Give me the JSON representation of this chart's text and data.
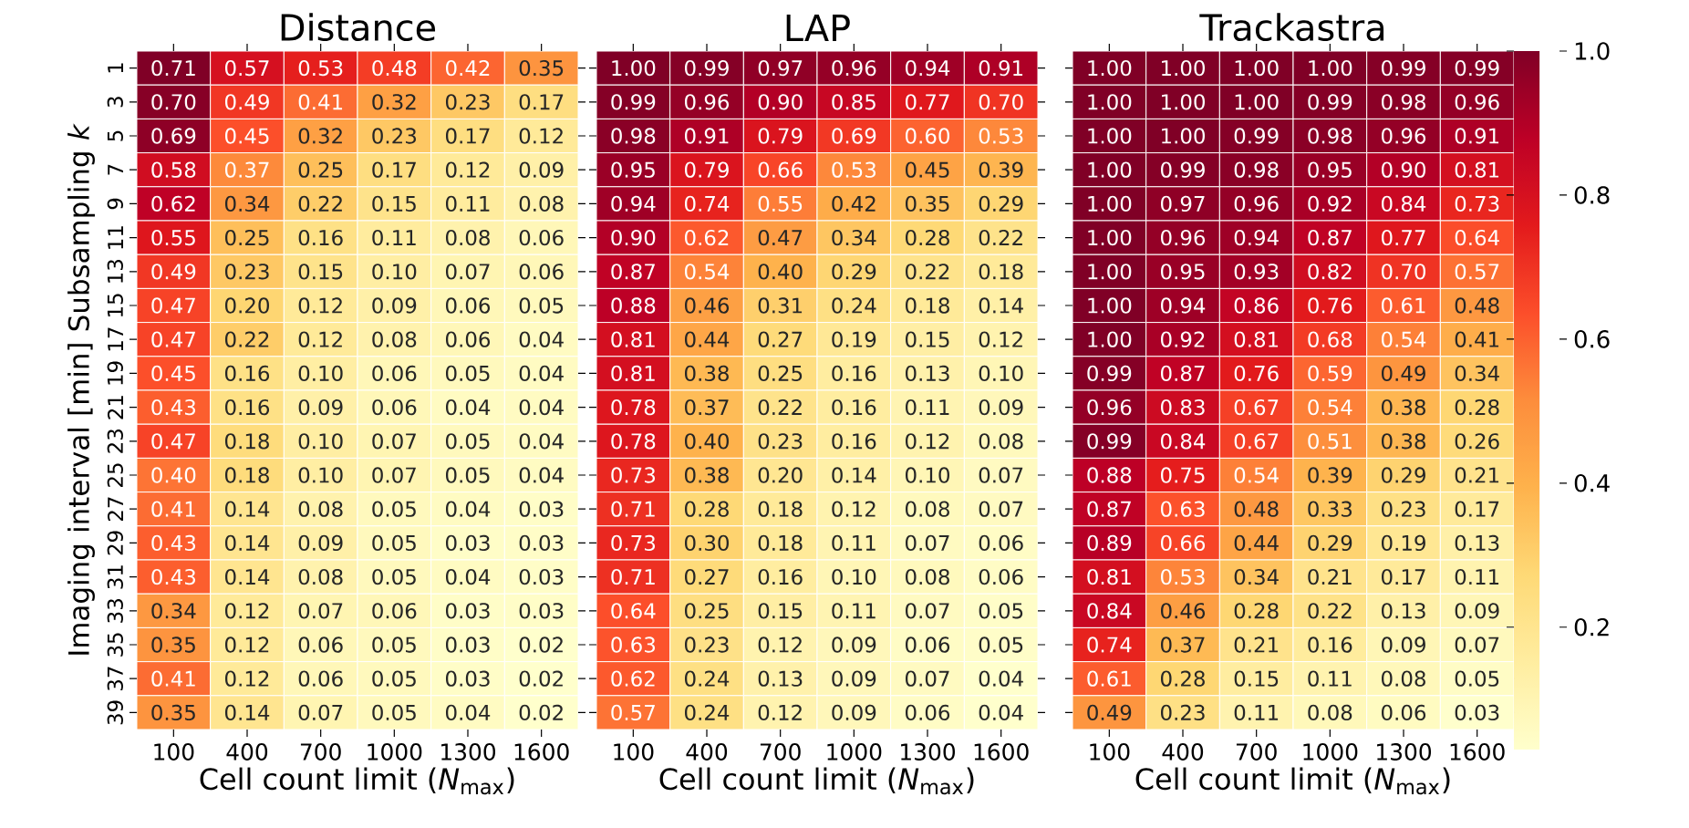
{
  "chart_data": [
    {
      "type": "heatmap",
      "title": "Distance",
      "xlabel": "Cell count limit (*N*$_{max}$)",
      "ylabel": "Imaging interval [min] Subsampling *k*",
      "categories": [
        "100",
        "400",
        "700",
        "1000",
        "1300",
        "1600"
      ],
      "y_categories": [
        "1",
        "3",
        "5",
        "7",
        "9",
        "11",
        "13",
        "15",
        "17",
        "19",
        "21",
        "23",
        "25",
        "27",
        "29",
        "31",
        "33",
        "35",
        "37",
        "39"
      ],
      "cells": [
        [
          0.71,
          0.57,
          0.53,
          0.48,
          0.42,
          0.35
        ],
        [
          0.7,
          0.49,
          0.41,
          0.32,
          0.23,
          0.17
        ],
        [
          0.69,
          0.45,
          0.32,
          0.23,
          0.17,
          0.12
        ],
        [
          0.58,
          0.37,
          0.25,
          0.17,
          0.12,
          0.09
        ],
        [
          0.62,
          0.34,
          0.22,
          0.15,
          0.11,
          0.08
        ],
        [
          0.55,
          0.25,
          0.16,
          0.11,
          0.08,
          0.06
        ],
        [
          0.49,
          0.23,
          0.15,
          0.1,
          0.07,
          0.06
        ],
        [
          0.47,
          0.2,
          0.12,
          0.09,
          0.06,
          0.05
        ],
        [
          0.47,
          0.22,
          0.12,
          0.08,
          0.06,
          0.04
        ],
        [
          0.45,
          0.16,
          0.1,
          0.06,
          0.05,
          0.04
        ],
        [
          0.43,
          0.16,
          0.09,
          0.06,
          0.04,
          0.04
        ],
        [
          0.47,
          0.18,
          0.1,
          0.07,
          0.05,
          0.04
        ],
        [
          0.4,
          0.18,
          0.1,
          0.07,
          0.05,
          0.04
        ],
        [
          0.41,
          0.14,
          0.08,
          0.05,
          0.04,
          0.03
        ],
        [
          0.43,
          0.14,
          0.09,
          0.05,
          0.03,
          0.03
        ],
        [
          0.43,
          0.14,
          0.08,
          0.05,
          0.04,
          0.03
        ],
        [
          0.34,
          0.12,
          0.07,
          0.06,
          0.03,
          0.03
        ],
        [
          0.35,
          0.12,
          0.06,
          0.05,
          0.03,
          0.02
        ],
        [
          0.41,
          0.12,
          0.06,
          0.05,
          0.03,
          0.02
        ],
        [
          0.35,
          0.14,
          0.07,
          0.05,
          0.04,
          0.02
        ]
      ],
      "cell_labels": [
        [
          "0.71",
          "0.57",
          "0.53",
          "0.48",
          "0.42",
          "0.35"
        ],
        [
          "0.70",
          "0.49",
          "0.41",
          "0.32",
          "0.23",
          "0.17"
        ],
        [
          "0.69",
          "0.45",
          "0.32",
          "0.23",
          "0.17",
          "0.12"
        ],
        [
          "0.58",
          "0.37",
          "0.25",
          "0.17",
          "0.12",
          "0.09"
        ],
        [
          "0.62",
          "0.34",
          "0.22",
          "0.15",
          "0.11",
          "0.08"
        ],
        [
          "0.55",
          "0.25",
          "0.16",
          "0.11",
          "0.08",
          "0.06"
        ],
        [
          "0.49",
          "0.23",
          "0.15",
          "0.10",
          "0.07",
          "0.06"
        ],
        [
          "0.47",
          "0.20",
          "0.12",
          "0.09",
          "0.06",
          "0.05"
        ],
        [
          "0.47",
          "0.22",
          "0.12",
          "0.08",
          "0.06",
          "0.04"
        ],
        [
          "0.45",
          "0.16",
          "0.10",
          "0.06",
          "0.05",
          "0.04"
        ],
        [
          "0.43",
          "0.16",
          "0.09",
          "0.06",
          "0.04",
          "0.04"
        ],
        [
          "0.47",
          "0.18",
          "0.10",
          "0.07",
          "0.05",
          "0.04"
        ],
        [
          "0.40",
          "0.18",
          "0.10",
          "0.07",
          "0.05",
          "0.04"
        ],
        [
          "0.41",
          "0.14",
          "0.08",
          "0.05",
          "0.04",
          "0.03"
        ],
        [
          "0.43",
          "0.14",
          "0.09",
          "0.05",
          "0.03",
          "0.03"
        ],
        [
          "0.43",
          "0.14",
          "0.08",
          "0.05",
          "0.04",
          "0.03"
        ],
        [
          "0.34",
          "0.12",
          "0.07",
          "0.06",
          "0.03",
          "0.03"
        ],
        [
          "0.35",
          "0.12",
          "0.06",
          "0.05",
          "0.03",
          "0.02"
        ],
        [
          "0.41",
          "0.12",
          "0.06",
          "0.05",
          "0.03",
          "0.02"
        ],
        [
          "0.35",
          "0.14",
          "0.07",
          "0.05",
          "0.04",
          "0.02"
        ]
      ]
    },
    {
      "type": "heatmap",
      "title": "LAP",
      "xlabel": "Cell count limit (*N*$_{max}$)",
      "tick_labels": "x",
      "categories": [
        "100",
        "400",
        "700",
        "1000",
        "1300",
        "1600"
      ],
      "y_categories": [
        "1",
        "3",
        "5",
        "7",
        "9",
        "11",
        "13",
        "15",
        "17",
        "19",
        "21",
        "23",
        "25",
        "27",
        "29",
        "31",
        "33",
        "35",
        "37",
        "39"
      ],
      "cells": [
        [
          1.0,
          0.99,
          0.97,
          0.96,
          0.94,
          0.91
        ],
        [
          0.99,
          0.96,
          0.9,
          0.85,
          0.77,
          0.7
        ],
        [
          0.98,
          0.91,
          0.79,
          0.69,
          0.6,
          0.53
        ],
        [
          0.95,
          0.79,
          0.66,
          0.53,
          0.45,
          0.39
        ],
        [
          0.94,
          0.74,
          0.55,
          0.42,
          0.35,
          0.29
        ],
        [
          0.9,
          0.62,
          0.47,
          0.34,
          0.28,
          0.22
        ],
        [
          0.87,
          0.54,
          0.4,
          0.29,
          0.22,
          0.18
        ],
        [
          0.88,
          0.46,
          0.31,
          0.24,
          0.18,
          0.14
        ],
        [
          0.81,
          0.44,
          0.27,
          0.19,
          0.15,
          0.12
        ],
        [
          0.81,
          0.38,
          0.25,
          0.16,
          0.13,
          0.1
        ],
        [
          0.78,
          0.37,
          0.22,
          0.16,
          0.11,
          0.09
        ],
        [
          0.78,
          0.4,
          0.23,
          0.16,
          0.12,
          0.08
        ],
        [
          0.73,
          0.38,
          0.2,
          0.14,
          0.1,
          0.07
        ],
        [
          0.71,
          0.28,
          0.18,
          0.12,
          0.08,
          0.07
        ],
        [
          0.73,
          0.3,
          0.18,
          0.11,
          0.07,
          0.06
        ],
        [
          0.71,
          0.27,
          0.16,
          0.1,
          0.08,
          0.06
        ],
        [
          0.64,
          0.25,
          0.15,
          0.11,
          0.07,
          0.05
        ],
        [
          0.63,
          0.23,
          0.12,
          0.09,
          0.06,
          0.05
        ],
        [
          0.62,
          0.24,
          0.13,
          0.09,
          0.07,
          0.04
        ],
        [
          0.57,
          0.24,
          0.12,
          0.09,
          0.06,
          0.04
        ]
      ],
      "cell_labels": [
        [
          "1.00",
          "0.99",
          "0.97",
          "0.96",
          "0.94",
          "0.91"
        ],
        [
          "0.99",
          "0.96",
          "0.90",
          "0.85",
          "0.77",
          "0.70"
        ],
        [
          "0.98",
          "0.91",
          "0.79",
          "0.69",
          "0.60",
          "0.53"
        ],
        [
          "0.95",
          "0.79",
          "0.66",
          "0.53",
          "0.45",
          "0.39"
        ],
        [
          "0.94",
          "0.74",
          "0.55",
          "0.42",
          "0.35",
          "0.29"
        ],
        [
          "0.90",
          "0.62",
          "0.47",
          "0.34",
          "0.28",
          "0.22"
        ],
        [
          "0.87",
          "0.54",
          "0.40",
          "0.29",
          "0.22",
          "0.18"
        ],
        [
          "0.88",
          "0.46",
          "0.31",
          "0.24",
          "0.18",
          "0.14"
        ],
        [
          "0.81",
          "0.44",
          "0.27",
          "0.19",
          "0.15",
          "0.12"
        ],
        [
          "0.81",
          "0.38",
          "0.25",
          "0.16",
          "0.13",
          "0.10"
        ],
        [
          "0.78",
          "0.37",
          "0.22",
          "0.16",
          "0.11",
          "0.09"
        ],
        [
          "0.78",
          "0.40",
          "0.23",
          "0.16",
          "0.12",
          "0.08"
        ],
        [
          "0.73",
          "0.38",
          "0.20",
          "0.14",
          "0.10",
          "0.07"
        ],
        [
          "0.71",
          "0.28",
          "0.18",
          "0.12",
          "0.08",
          "0.07"
        ],
        [
          "0.73",
          "0.30",
          "0.18",
          "0.11",
          "0.07",
          "0.06"
        ],
        [
          "0.71",
          "0.27",
          "0.16",
          "0.10",
          "0.08",
          "0.06"
        ],
        [
          "0.64",
          "0.25",
          "0.15",
          "0.11",
          "0.07",
          "0.05"
        ],
        [
          "0.63",
          "0.23",
          "0.12",
          "0.09",
          "0.06",
          "0.05"
        ],
        [
          "0.62",
          "0.24",
          "0.13",
          "0.09",
          "0.07",
          "0.04"
        ],
        [
          "0.57",
          "0.24",
          "0.12",
          "0.09",
          "0.06",
          "0.04"
        ]
      ]
    },
    {
      "type": "heatmap",
      "title": "Trackastra",
      "xlabel": "Cell count limit (*N*$_{max}$)",
      "tick_labels": "x",
      "categories": [
        "100",
        "400",
        "700",
        "1000",
        "1300",
        "1600"
      ],
      "y_categories": [
        "1",
        "3",
        "5",
        "7",
        "9",
        "11",
        "13",
        "15",
        "17",
        "19",
        "21",
        "23",
        "25",
        "27",
        "29",
        "31",
        "33",
        "35",
        "37",
        "39"
      ],
      "clim": [
        0.03,
        1.0
      ],
      "cticks": [
        0.2,
        0.4,
        0.6,
        0.8,
        {
          "value": 1.0,
          "label": "1.0"
        }
      ],
      "cells": [
        [
          1.0,
          1.0,
          1.0,
          1.0,
          0.99,
          0.99
        ],
        [
          1.0,
          1.0,
          1.0,
          0.99,
          0.98,
          0.96
        ],
        [
          1.0,
          1.0,
          0.99,
          0.98,
          0.96,
          0.91
        ],
        [
          1.0,
          0.99,
          0.98,
          0.95,
          0.9,
          0.81
        ],
        [
          1.0,
          0.97,
          0.96,
          0.92,
          0.84,
          0.73
        ],
        [
          1.0,
          0.96,
          0.94,
          0.87,
          0.77,
          0.64
        ],
        [
          1.0,
          0.95,
          0.93,
          0.82,
          0.7,
          0.57
        ],
        [
          1.0,
          0.94,
          0.86,
          0.76,
          0.61,
          0.48
        ],
        [
          1.0,
          0.92,
          0.81,
          0.68,
          0.54,
          0.41
        ],
        [
          0.99,
          0.87,
          0.76,
          0.59,
          0.49,
          0.34
        ],
        [
          0.96,
          0.83,
          0.67,
          0.54,
          0.38,
          0.28
        ],
        [
          0.99,
          0.84,
          0.67,
          0.51,
          0.38,
          0.26
        ],
        [
          0.88,
          0.75,
          0.54,
          0.39,
          0.29,
          0.21
        ],
        [
          0.87,
          0.63,
          0.48,
          0.33,
          0.23,
          0.17
        ],
        [
          0.89,
          0.66,
          0.44,
          0.29,
          0.19,
          0.13
        ],
        [
          0.81,
          0.53,
          0.34,
          0.21,
          0.17,
          0.11
        ],
        [
          0.84,
          0.46,
          0.28,
          0.22,
          0.13,
          0.09
        ],
        [
          0.74,
          0.37,
          0.21,
          0.16,
          0.09,
          0.07
        ],
        [
          0.61,
          0.28,
          0.15,
          0.11,
          0.08,
          0.05
        ],
        [
          0.49,
          0.23,
          0.11,
          0.08,
          0.06,
          0.03
        ]
      ],
      "cell_labels": [
        [
          "1.00",
          "1.00",
          "1.00",
          "1.00",
          "0.99",
          "0.99"
        ],
        [
          "1.00",
          "1.00",
          "1.00",
          "0.99",
          "0.98",
          "0.96"
        ],
        [
          "1.00",
          "1.00",
          "0.99",
          "0.98",
          "0.96",
          "0.91"
        ],
        [
          "1.00",
          "0.99",
          "0.98",
          "0.95",
          "0.90",
          "0.81"
        ],
        [
          "1.00",
          "0.97",
          "0.96",
          "0.92",
          "0.84",
          "0.73"
        ],
        [
          "1.00",
          "0.96",
          "0.94",
          "0.87",
          "0.77",
          "0.64"
        ],
        [
          "1.00",
          "0.95",
          "0.93",
          "0.82",
          "0.70",
          "0.57"
        ],
        [
          "1.00",
          "0.94",
          "0.86",
          "0.76",
          "0.61",
          "0.48"
        ],
        [
          "1.00",
          "0.92",
          "0.81",
          "0.68",
          "0.54",
          "0.41"
        ],
        [
          "0.99",
          "0.87",
          "0.76",
          "0.59",
          "0.49",
          "0.34"
        ],
        [
          "0.96",
          "0.83",
          "0.67",
          "0.54",
          "0.38",
          "0.28"
        ],
        [
          "0.99",
          "0.84",
          "0.67",
          "0.51",
          "0.38",
          "0.26"
        ],
        [
          "0.88",
          "0.75",
          "0.54",
          "0.39",
          "0.29",
          "0.21"
        ],
        [
          "0.87",
          "0.63",
          "0.48",
          "0.33",
          "0.23",
          "0.17"
        ],
        [
          "0.89",
          "0.66",
          "0.44",
          "0.29",
          "0.19",
          "0.13"
        ],
        [
          "0.81",
          "0.53",
          "0.34",
          "0.21",
          "0.17",
          "0.11"
        ],
        [
          "0.84",
          "0.46",
          "0.28",
          "0.22",
          "0.13",
          "0.09"
        ],
        [
          "0.74",
          "0.37",
          "0.21",
          "0.16",
          "0.09",
          "0.07"
        ],
        [
          "0.61",
          "0.28",
          "0.15",
          "0.11",
          "0.08",
          "0.05"
        ],
        [
          "0.49",
          "0.23",
          "0.11",
          "0.08",
          "0.06",
          "0.03"
        ]
      ]
    }
  ]
}
